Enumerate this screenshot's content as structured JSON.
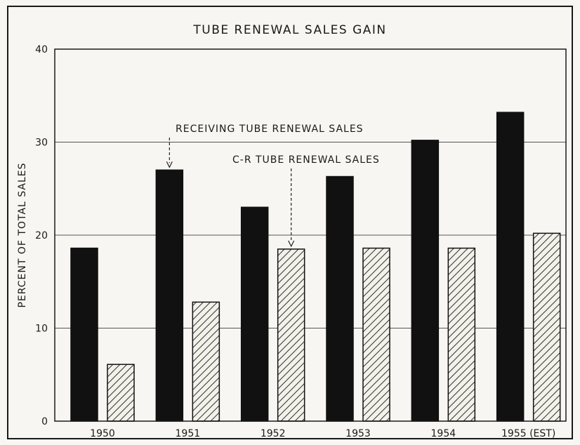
{
  "chart_data": {
    "type": "bar",
    "title": "TUBE RENEWAL SALES GAIN",
    "xlabel": "",
    "ylabel": "PERCENT OF TOTAL SALES",
    "ylim": [
      0,
      40
    ],
    "yticks": [
      "0",
      "10",
      "20",
      "30",
      "40"
    ],
    "categories": [
      "1950",
      "1951",
      "1952",
      "1953",
      "1954",
      "1955 (EST)"
    ],
    "series": [
      {
        "name": "RECEIVING TUBE RENEWAL SALES",
        "values": [
          18.6,
          27.0,
          23.0,
          26.3,
          30.2,
          33.2
        ],
        "color": "#111111",
        "pattern": "solid"
      },
      {
        "name": "C-R TUBE RENEWAL SALES",
        "values": [
          6.1,
          12.8,
          18.5,
          18.6,
          18.6,
          20.2
        ],
        "color": "#f3f2ea",
        "pattern": "hatched"
      }
    ],
    "grid": true,
    "annotations": [
      {
        "text": "RECEIVING TUBE RENEWAL SALES",
        "points_to": {
          "category": "1951",
          "series": 0
        }
      },
      {
        "text": "C-R TUBE RENEWAL SALES",
        "points_to": {
          "category": "1952",
          "series": 1
        }
      }
    ]
  }
}
